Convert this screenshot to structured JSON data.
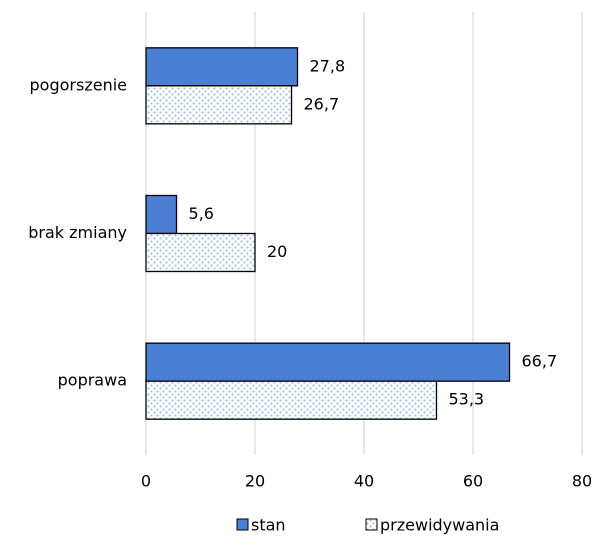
{
  "chart_data": {
    "type": "hbar",
    "categories": [
      "pogorszenie",
      "brak zmiany",
      "poprawa"
    ],
    "series": [
      {
        "name": "stan",
        "color": "#4a7fd4",
        "values": [
          27.8,
          5.6,
          66.7
        ],
        "value_labels": [
          "27,8",
          "5,6",
          "66,7"
        ]
      },
      {
        "name": "przewidywania",
        "color": "#9dc3e6",
        "values": [
          26.7,
          20,
          53.3
        ],
        "value_labels": [
          "26,7",
          "20",
          "53,3"
        ]
      }
    ],
    "xlim": [
      0,
      80
    ],
    "xticks": [
      0,
      20,
      40,
      60,
      80
    ],
    "grid": true,
    "legend": "bottom"
  }
}
